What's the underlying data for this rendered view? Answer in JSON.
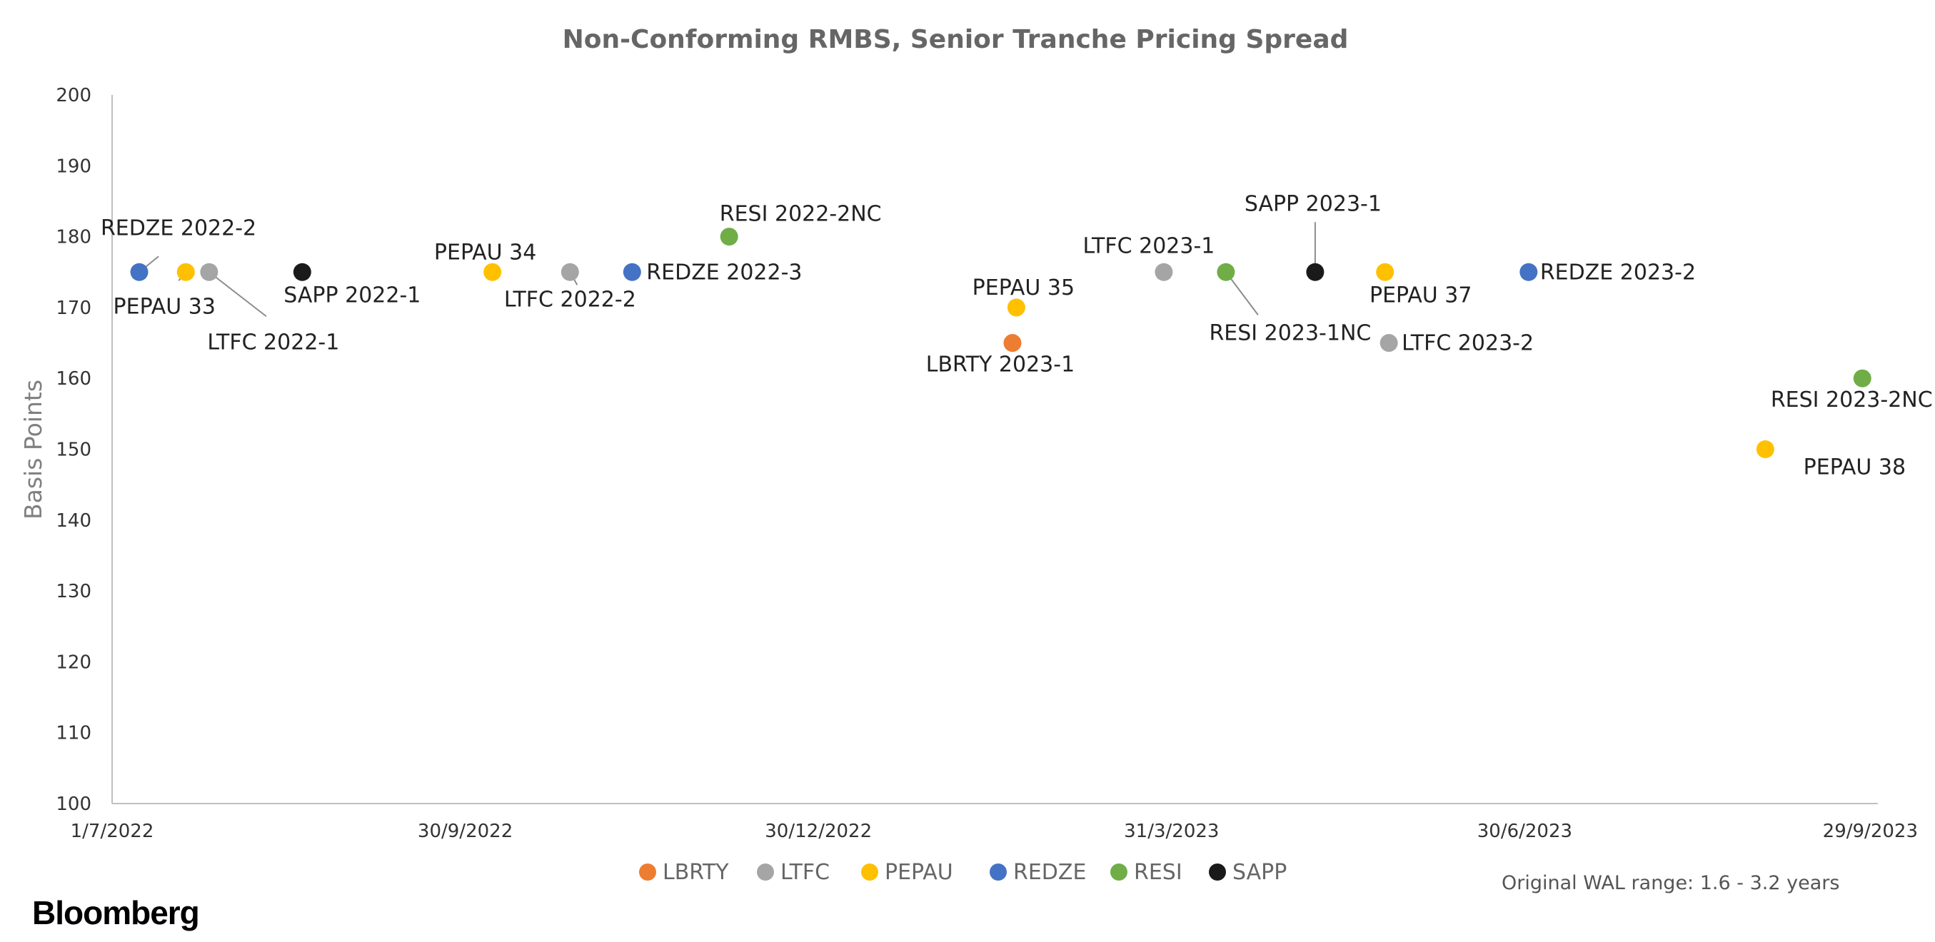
{
  "chart_data": {
    "type": "scatter",
    "title": "Non-Conforming RMBS, Senior Tranche Pricing Spread",
    "xlabel": "",
    "ylabel": "Basis Points",
    "ylim": [
      100,
      200
    ],
    "yticks": [
      100,
      110,
      120,
      130,
      140,
      150,
      160,
      170,
      180,
      190,
      200
    ],
    "xlim": [
      "2022-07-01",
      "2023-09-29"
    ],
    "xticks": [
      {
        "date": "2022-07-01",
        "label": "1/7/2022"
      },
      {
        "date": "2022-09-30",
        "label": "30/9/2022"
      },
      {
        "date": "2022-12-30",
        "label": "30/12/2022"
      },
      {
        "date": "2023-03-31",
        "label": "31/3/2023"
      },
      {
        "date": "2023-06-30",
        "label": "30/6/2023"
      },
      {
        "date": "2023-09-29",
        "label": "29/9/2023"
      }
    ],
    "grid": false,
    "legend_position": "bottom",
    "series": [
      {
        "name": "LBRTY",
        "color": "#ED7D31",
        "points": [
          {
            "x": "2023-02-18",
            "y": 165,
            "label": "LBRTY 2023-1"
          }
        ]
      },
      {
        "name": "LTFC",
        "color": "#A5A5A5",
        "points": [
          {
            "x": "2022-07-26",
            "y": 175,
            "label": "LTFC 2022-1"
          },
          {
            "x": "2022-10-27",
            "y": 175,
            "label": "LTFC 2022-2"
          },
          {
            "x": "2023-03-29",
            "y": 175,
            "label": "LTFC 2023-1"
          },
          {
            "x": "2023-05-26",
            "y": 165,
            "label": "LTFC 2023-2"
          }
        ]
      },
      {
        "name": "PEPAU",
        "color": "#FFC000",
        "points": [
          {
            "x": "2022-07-20",
            "y": 175,
            "label": "PEPAU 33"
          },
          {
            "x": "2022-10-07",
            "y": 175,
            "label": "PEPAU 34"
          },
          {
            "x": "2023-02-19",
            "y": 170,
            "label": "PEPAU 35"
          },
          {
            "x": "2023-05-25",
            "y": 175,
            "label": "PEPAU 37"
          },
          {
            "x": "2023-08-31",
            "y": 150,
            "label": "PEPAU 38"
          }
        ]
      },
      {
        "name": "REDZE",
        "color": "#4472C4",
        "points": [
          {
            "x": "2022-07-08",
            "y": 175,
            "label": "REDZE 2022-2"
          },
          {
            "x": "2022-11-12",
            "y": 175,
            "label": "REDZE 2022-3"
          },
          {
            "x": "2023-07-01",
            "y": 175,
            "label": "REDZE 2023-2"
          }
        ]
      },
      {
        "name": "RESI",
        "color": "#70AD47",
        "points": [
          {
            "x": "2022-12-07",
            "y": 180,
            "label": "RESI 2022-2NC"
          },
          {
            "x": "2023-04-14",
            "y": 175,
            "label": "RESI 2023-1NC"
          },
          {
            "x": "2023-09-25",
            "y": 160,
            "label": "RESI 2023-2NC"
          }
        ]
      },
      {
        "name": "SAPP",
        "color": "#1A1A1A",
        "points": [
          {
            "x": "2022-08-19",
            "y": 175,
            "label": "SAPP 2022-1"
          },
          {
            "x": "2023-05-07",
            "y": 175,
            "label": "SAPP 2023-1"
          }
        ]
      }
    ]
  },
  "note": "Original WAL range: 1.6 - 3.2 years",
  "brand": "Bloomberg"
}
